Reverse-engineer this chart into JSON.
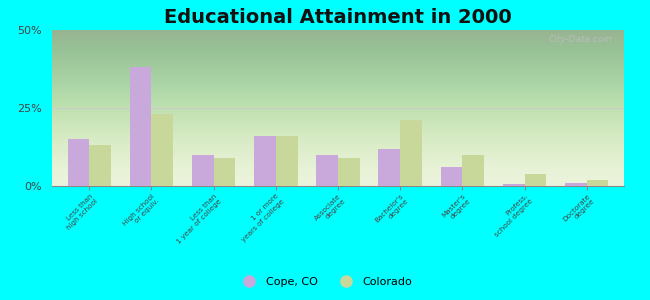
{
  "title": "Educational Attainment in 2000",
  "categories": [
    "Less than\nhigh school",
    "High school\nor equiv.",
    "Less than\n1 year of college",
    "1 or more\nyears of college",
    "Associate\ndegree",
    "Bachelor's\ndegree",
    "Master's\ndegree",
    "Profess.\nschool degree",
    "Doctorate\ndegree"
  ],
  "cope_values": [
    15.0,
    38.0,
    10.0,
    16.0,
    10.0,
    12.0,
    6.0,
    0.5,
    1.0
  ],
  "colorado_values": [
    13.0,
    23.0,
    9.0,
    16.0,
    9.0,
    21.0,
    10.0,
    4.0,
    2.0
  ],
  "cope_color": "#c9a8dc",
  "colorado_color": "#c8d89a",
  "outer_bg": "#00ffff",
  "ylim": [
    0,
    50
  ],
  "yticks": [
    0,
    25,
    50
  ],
  "ytick_labels": [
    "0%",
    "25%",
    "50%"
  ],
  "title_fontsize": 14,
  "legend_cope": "Cope, CO",
  "legend_colorado": "Colorado",
  "watermark": "City-Data.com"
}
